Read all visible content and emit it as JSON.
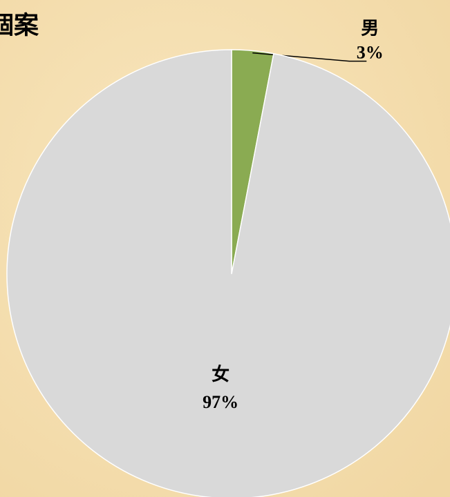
{
  "title": "個案",
  "chart_data": {
    "type": "pie",
    "categories": [
      "男",
      "女"
    ],
    "values": [
      3,
      97
    ],
    "value_labels": [
      "3%",
      "97%"
    ],
    "colors": [
      "#8aab52",
      "#d9d9d9"
    ]
  }
}
